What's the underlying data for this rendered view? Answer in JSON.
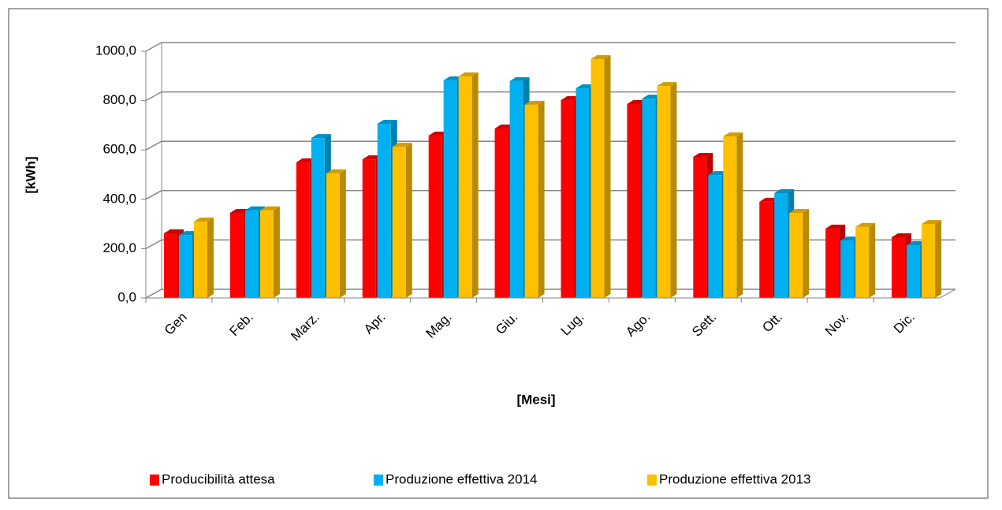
{
  "chart_data": {
    "type": "bar3d",
    "y_label": "[kWh]",
    "x_label": "[Mesi]",
    "categories": [
      "Gen",
      "Feb.",
      "Marz.",
      "Apr.",
      "Mag.",
      "Giu.",
      "Lug.",
      "Ago.",
      "Sett.",
      "Ott.",
      "Nov.",
      "Dic."
    ],
    "series": [
      {
        "name": "Producibilità attesa",
        "color": "#ff0000",
        "values": [
          262,
          345,
          550,
          562,
          658,
          687,
          802,
          786,
          572,
          390,
          281,
          246
        ]
      },
      {
        "name": "Produzione effettiva 2014",
        "color": "#00b0f0",
        "values": [
          255,
          355,
          648,
          706,
          882,
          879,
          850,
          808,
          498,
          425,
          233,
          214
        ]
      },
      {
        "name": "Produzione effettiva 2013",
        "color": "#ffc000",
        "values": [
          310,
          355,
          505,
          613,
          898,
          783,
          968,
          859,
          655,
          345,
          288,
          300
        ]
      }
    ],
    "ylim": [
      0,
      1000
    ],
    "yticks": [
      {
        "value": 0,
        "label": "0,0"
      },
      {
        "value": 200,
        "label": "200,0"
      },
      {
        "value": 400,
        "label": "400,0"
      },
      {
        "value": 600,
        "label": "600,0"
      },
      {
        "value": 800,
        "label": "800,0"
      },
      {
        "value": 1000,
        "label": "1000,0"
      }
    ],
    "grid": true,
    "legend": "bottom"
  }
}
